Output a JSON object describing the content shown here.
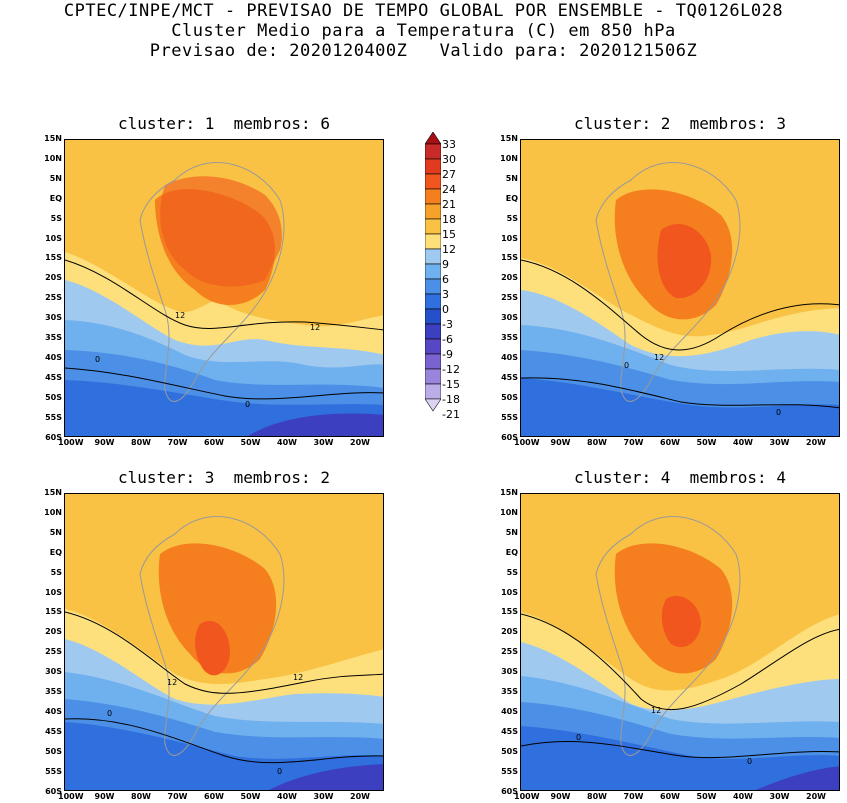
{
  "header": {
    "line1": "CPTEC/INPE/MCT - PREVISAO DE TEMPO GLOBAL POR ENSEMBLE - TQ0126L028",
    "line2": "Cluster Medio para a Temperatura (C) em 850 hPa",
    "line3": "Previsao de: 2020120400Z   Valido para: 2020121506Z"
  },
  "panels": [
    {
      "title": "cluster: 1  membros: 6",
      "contour_labels": [
        "12",
        "12",
        "0",
        "0"
      ]
    },
    {
      "title": "cluster: 2  membros: 3",
      "contour_labels": [
        "12",
        "0",
        "0"
      ]
    },
    {
      "title": "cluster: 3  membros: 2",
      "contour_labels": [
        "12",
        "12",
        "0",
        "0"
      ]
    },
    {
      "title": "cluster: 4  membros: 4",
      "contour_labels": [
        "12",
        "0",
        "0"
      ]
    }
  ],
  "lat_ticks": [
    "15N",
    "10N",
    "5N",
    "EQ",
    "5S",
    "10S",
    "15S",
    "20S",
    "25S",
    "30S",
    "35S",
    "40S",
    "45S",
    "50S",
    "55S",
    "60S"
  ],
  "lon_ticks": [
    "100W",
    "90W",
    "80W",
    "70W",
    "60W",
    "50W",
    "40W",
    "30W",
    "20W"
  ],
  "colorbar": {
    "labels": [
      "33",
      "30",
      "27",
      "24",
      "21",
      "18",
      "15",
      "12",
      "9",
      "6",
      "3",
      "0",
      "-3",
      "-6",
      "-9",
      "-12",
      "-15",
      "-18",
      "-21"
    ],
    "colors": [
      "#a50f15",
      "#c92a2a",
      "#e03a1f",
      "#f0561e",
      "#f57f1e",
      "#f6a12a",
      "#f9c244",
      "#fde07c",
      "#9fc9ef",
      "#6fb0ee",
      "#4c8fe6",
      "#2f6fde",
      "#2650c9",
      "#3b3fc0",
      "#5847c4",
      "#7a62cf",
      "#9b85dc",
      "#bcace8",
      "#dcd3f3"
    ]
  }
}
